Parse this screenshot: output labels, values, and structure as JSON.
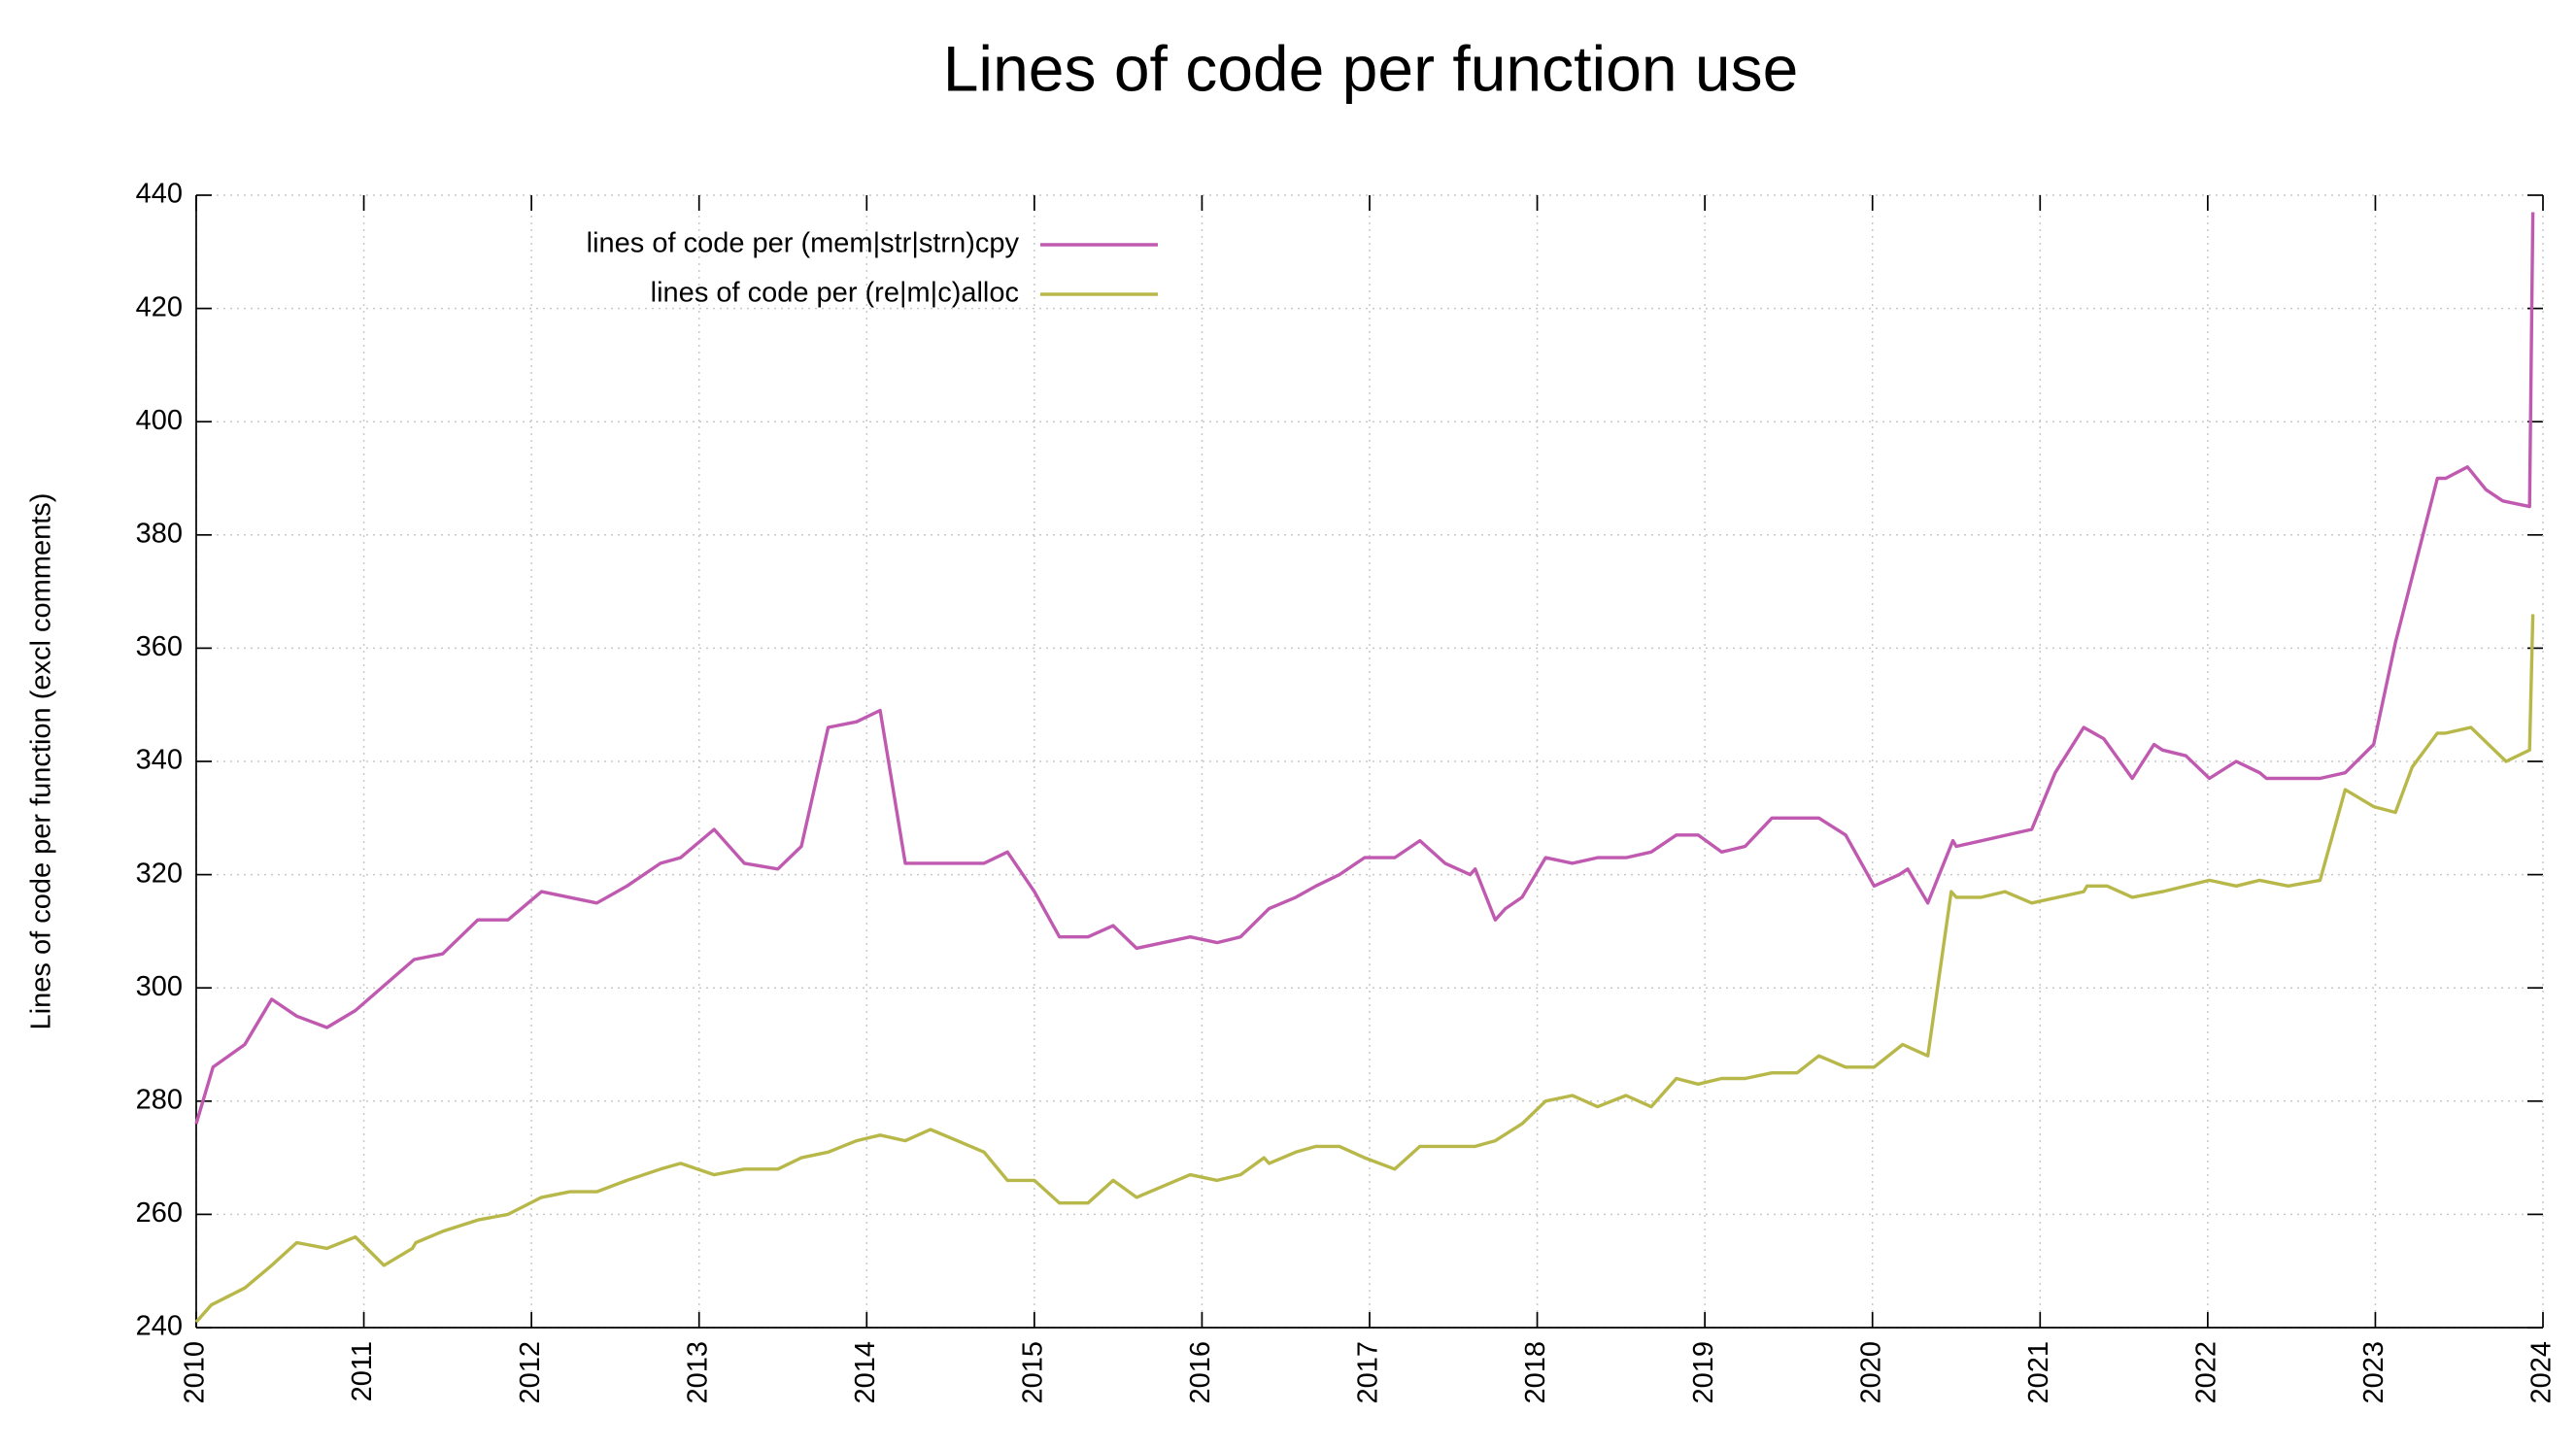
{
  "chart_data": {
    "type": "line",
    "title": "Lines of code per function use",
    "ylabel": "Lines of code per function (excl comments)",
    "xlim": [
      2010,
      2024
    ],
    "xticks": [
      2010,
      2011,
      2012,
      2013,
      2014,
      2015,
      2016,
      2017,
      2018,
      2019,
      2020,
      2021,
      2022,
      2023,
      2024
    ],
    "ylim": [
      240,
      440
    ],
    "yticks": [
      240,
      260,
      280,
      300,
      320,
      340,
      360,
      380,
      400,
      420,
      440
    ],
    "grid": true,
    "legend": "top",
    "series": [
      {
        "name": "lines of code per (mem|str|strn)cpy",
        "color": "#c05ab0",
        "x": [
          2010.0,
          2010.1,
          2010.29,
          2010.45,
          2010.6,
          2010.78,
          2010.95,
          2011.3,
          2011.47,
          2011.68,
          2011.86,
          2012.06,
          2012.39,
          2012.57,
          2012.77,
          2012.89,
          2013.09,
          2013.27,
          2013.47,
          2013.61,
          2013.77,
          2013.94,
          2014.08,
          2014.23,
          2014.7,
          2014.84,
          2015.0,
          2015.15,
          2015.32,
          2015.47,
          2015.61,
          2015.93,
          2016.09,
          2016.23,
          2016.4,
          2016.56,
          2016.68,
          2016.82,
          2016.97,
          2017.15,
          2017.3,
          2017.45,
          2017.6,
          2017.63,
          2017.75,
          2017.81,
          2017.91,
          2018.05,
          2018.21,
          2018.36,
          2018.53,
          2018.68,
          2018.83,
          2018.96,
          2019.1,
          2019.24,
          2019.4,
          2019.68,
          2019.84,
          2020.01,
          2020.16,
          2020.21,
          2020.33,
          2020.48,
          2020.5,
          2020.95,
          2021.09,
          2021.26,
          2021.38,
          2021.55,
          2021.68,
          2021.73,
          2021.87,
          2022.01,
          2022.17,
          2022.31,
          2022.35,
          2022.67,
          2022.82,
          2022.99,
          2023.12,
          2023.37,
          2023.42,
          2023.55,
          2023.66,
          2023.76,
          2023.92,
          2023.94
        ],
        "values": [
          276,
          286,
          290,
          298,
          295,
          293,
          296,
          305,
          306,
          312,
          312,
          317,
          315,
          318,
          322,
          323,
          328,
          322,
          321,
          325,
          346,
          347,
          349,
          322,
          322,
          324,
          317,
          309,
          309,
          311,
          307,
          309,
          308,
          309,
          314,
          316,
          318,
          320,
          323,
          323,
          326,
          322,
          320,
          321,
          312,
          314,
          316,
          323,
          322,
          323,
          323,
          324,
          327,
          327,
          324,
          325,
          330,
          330,
          327,
          318,
          320,
          321,
          315,
          326,
          325,
          328,
          338,
          346,
          344,
          337,
          343,
          342,
          341,
          337,
          340,
          338,
          337,
          337,
          338,
          343,
          361,
          390,
          390,
          392,
          388,
          386,
          385,
          437
        ]
      },
      {
        "name": "lines of code per (re|m|c)alloc",
        "color": "#b8b84a",
        "x": [
          2010.0,
          2010.09,
          2010.29,
          2010.45,
          2010.6,
          2010.78,
          2010.95,
          2011.12,
          2011.29,
          2011.31,
          2011.47,
          2011.68,
          2011.86,
          2012.06,
          2012.23,
          2012.39,
          2012.57,
          2012.77,
          2012.89,
          2013.09,
          2013.27,
          2013.47,
          2013.61,
          2013.77,
          2013.94,
          2014.08,
          2014.23,
          2014.38,
          2014.54,
          2014.7,
          2014.84,
          2015.0,
          2015.15,
          2015.32,
          2015.47,
          2015.61,
          2015.93,
          2016.09,
          2016.23,
          2016.37,
          2016.4,
          2016.56,
          2016.68,
          2016.82,
          2016.97,
          2017.15,
          2017.3,
          2017.63,
          2017.75,
          2017.91,
          2018.05,
          2018.21,
          2018.36,
          2018.53,
          2018.68,
          2018.83,
          2018.96,
          2019.1,
          2019.24,
          2019.4,
          2019.55,
          2019.68,
          2019.84,
          2020.01,
          2020.18,
          2020.33,
          2020.47,
          2020.5,
          2020.65,
          2020.79,
          2020.95,
          2021.26,
          2021.28,
          2021.4,
          2021.55,
          2021.73,
          2022.01,
          2022.17,
          2022.31,
          2022.48,
          2022.67,
          2022.82,
          2022.99,
          2023.12,
          2023.22,
          2023.37,
          2023.42,
          2023.57,
          2023.78,
          2023.92,
          2023.94
        ],
        "values": [
          241,
          244,
          247,
          251,
          255,
          254,
          256,
          251,
          254,
          255,
          257,
          259,
          260,
          263,
          264,
          264,
          266,
          268,
          269,
          267,
          268,
          268,
          270,
          271,
          273,
          274,
          273,
          275,
          273,
          271,
          266,
          266,
          262,
          262,
          266,
          263,
          267,
          266,
          267,
          270,
          269,
          271,
          272,
          272,
          270,
          268,
          272,
          272,
          273,
          276,
          280,
          281,
          279,
          281,
          279,
          284,
          283,
          284,
          284,
          285,
          285,
          288,
          286,
          286,
          290,
          288,
          317,
          316,
          316,
          317,
          315,
          317,
          318,
          318,
          316,
          317,
          319,
          318,
          319,
          318,
          319,
          335,
          332,
          331,
          339,
          345,
          345,
          346,
          340,
          342,
          366
        ]
      }
    ]
  }
}
